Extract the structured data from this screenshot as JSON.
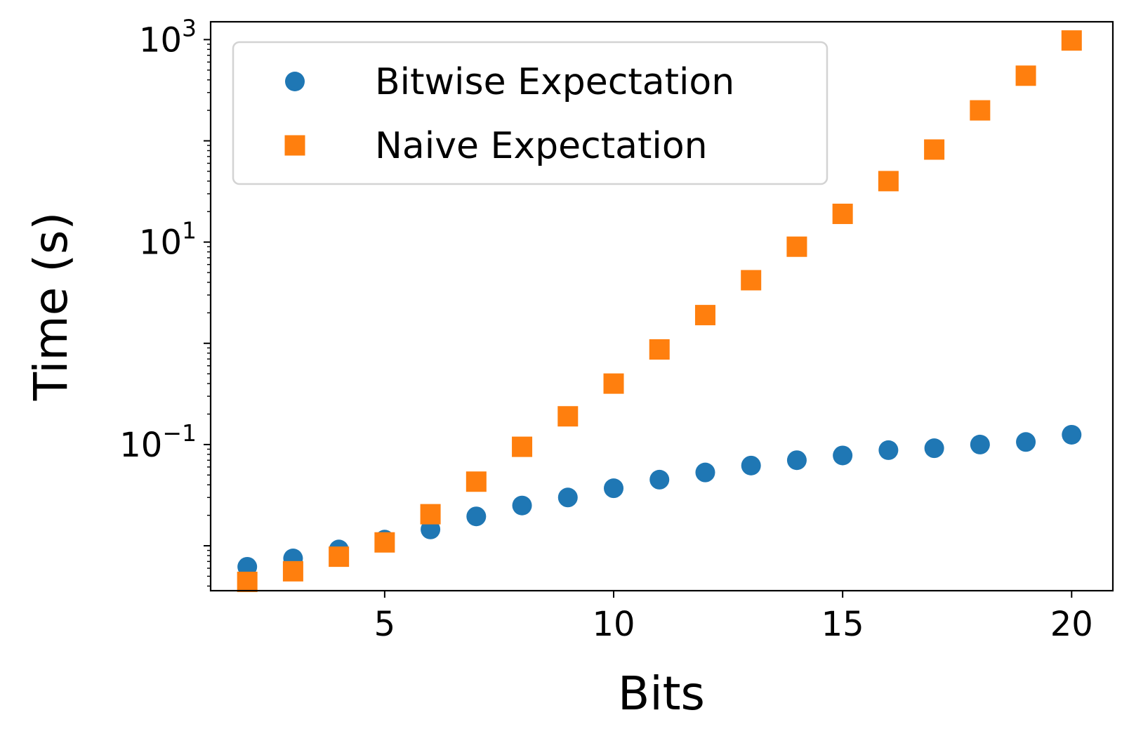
{
  "chart_data": {
    "type": "scatter",
    "title": "",
    "xlabel": "Bits",
    "ylabel": "Time (s)",
    "xlim": [
      1.2,
      20.9
    ],
    "ylim": [
      0.0036,
      1500
    ],
    "yscale": "log",
    "grid": false,
    "legend_position": "top-left",
    "x_ticks": [
      5,
      10,
      15,
      20
    ],
    "y_ticks": [
      {
        "value": 0.1,
        "base": "10",
        "exp": "−1"
      },
      {
        "value": 10,
        "base": "10",
        "exp": "1"
      },
      {
        "value": 1000,
        "base": "10",
        "exp": "3"
      }
    ],
    "x": [
      2,
      3,
      4,
      5,
      6,
      7,
      8,
      9,
      10,
      11,
      12,
      13,
      14,
      15,
      16,
      17,
      18,
      19,
      20
    ],
    "series": [
      {
        "name": "Bitwise Expectation",
        "marker": "circle",
        "color": "#1f77b4",
        "values": [
          0.0062,
          0.0075,
          0.0092,
          0.0115,
          0.0145,
          0.0195,
          0.025,
          0.03,
          0.037,
          0.045,
          0.053,
          0.062,
          0.07,
          0.078,
          0.088,
          0.092,
          0.1,
          0.106,
          0.125
        ]
      },
      {
        "name": "Naive Expectation",
        "marker": "square",
        "color": "#ff7f0e",
        "values": [
          0.0044,
          0.0056,
          0.0078,
          0.0108,
          0.0205,
          0.043,
          0.095,
          0.19,
          0.4,
          0.87,
          1.9,
          4.2,
          9.0,
          19,
          40,
          82,
          200,
          440,
          980
        ]
      }
    ]
  }
}
